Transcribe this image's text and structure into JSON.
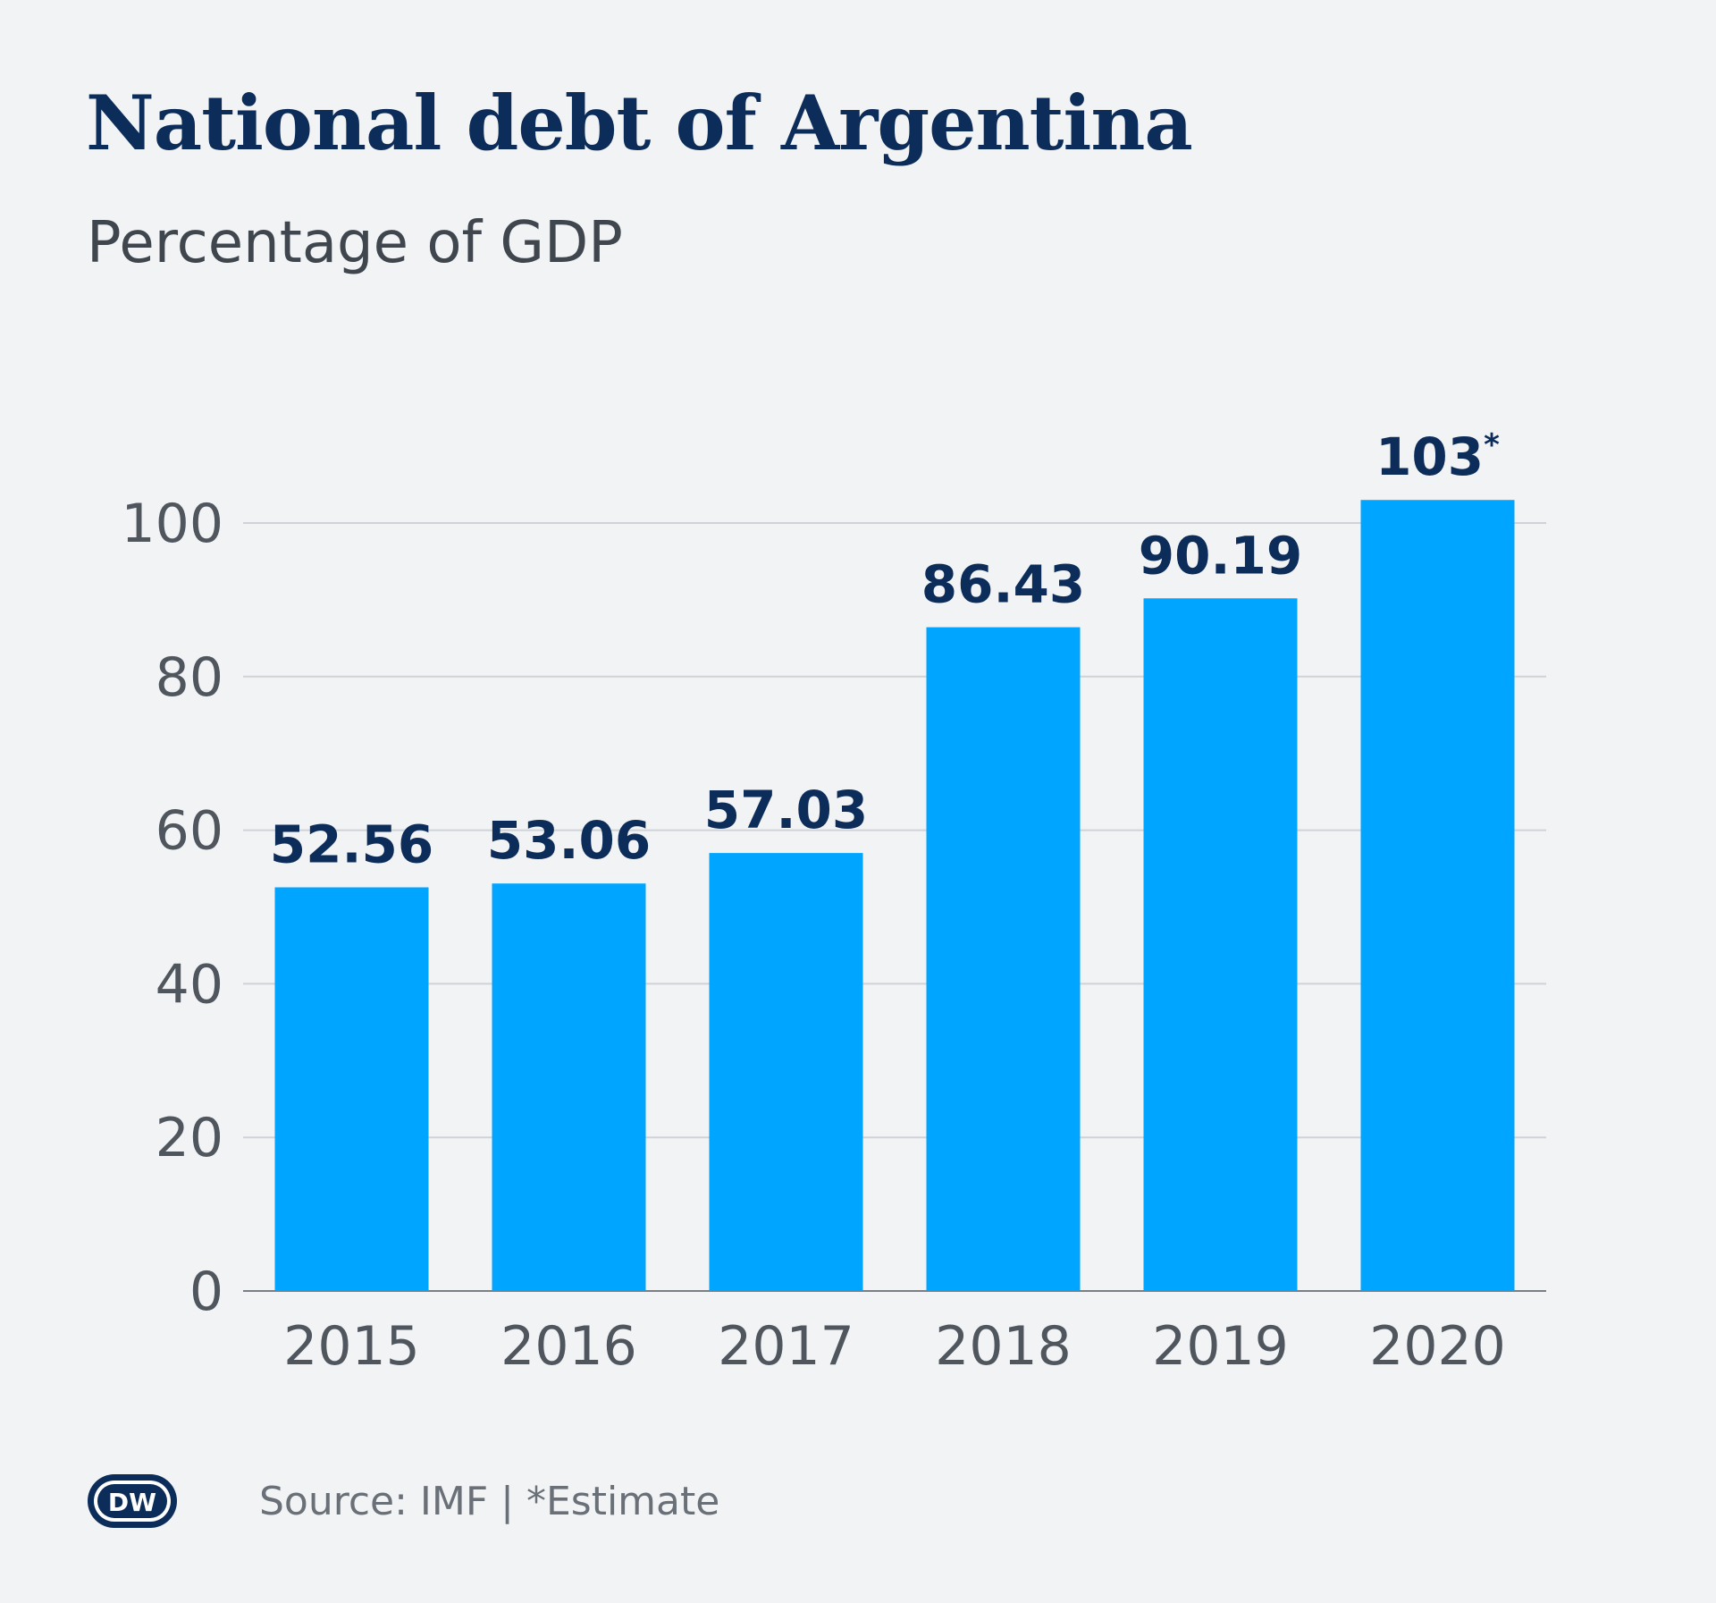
{
  "chart_data": {
    "type": "bar",
    "title": "National debt of Argentina",
    "subtitle": "Percentage of GDP",
    "categories": [
      "2015",
      "2016",
      "2017",
      "2018",
      "2019",
      "2020"
    ],
    "values": [
      52.56,
      53.06,
      57.03,
      86.43,
      90.19,
      103
    ],
    "value_labels": [
      "52.56",
      "53.06",
      "57.03",
      "86.43",
      "90.19",
      "103"
    ],
    "value_notes": [
      "",
      "",
      "",
      "",
      "",
      "*"
    ],
    "ylim": [
      0,
      100
    ],
    "yticks": [
      0,
      20,
      40,
      60,
      80,
      100
    ],
    "ytick_labels": [
      "0",
      "20",
      "40",
      "60",
      "80",
      "100"
    ],
    "grid": true,
    "xlabel": "",
    "ylabel": "",
    "colors": {
      "bar": "#00a5ff",
      "gridline": "#cfd3d8",
      "axis": "#7a7f86"
    }
  },
  "footer": {
    "logo_text": "DW",
    "logo_icon": "dw-logo-icon",
    "source": "Source: IMF | *Estimate"
  }
}
